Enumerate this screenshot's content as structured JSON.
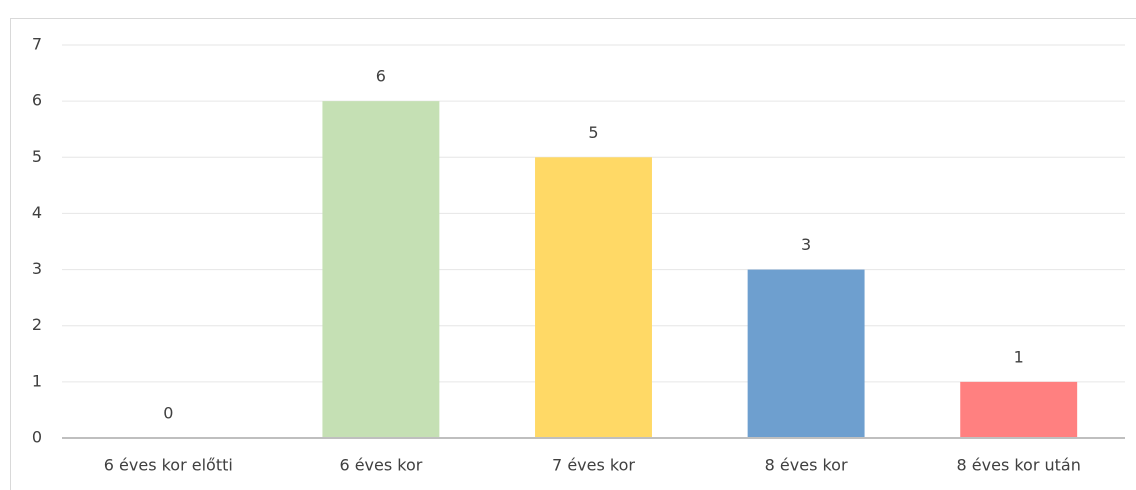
{
  "chart_data": {
    "type": "bar",
    "categories": [
      "6 éves kor előtti",
      "6 éves kor",
      "7 éves kor",
      "8 éves kor",
      "8 éves kor után"
    ],
    "values": [
      0,
      6,
      5,
      3,
      1
    ],
    "colors": [
      "#9dc3e6",
      "#c5e0b4",
      "#ffd966",
      "#6e9fcf",
      "#ff8080"
    ],
    "ylim": [
      0,
      7
    ],
    "yticks": [
      0,
      1,
      2,
      3,
      4,
      5,
      6,
      7
    ],
    "grid": true,
    "data_labels": true
  }
}
